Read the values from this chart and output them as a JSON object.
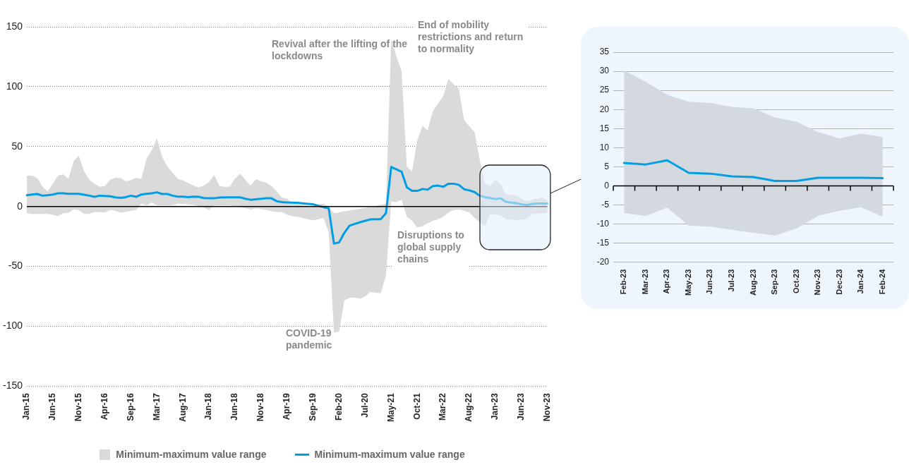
{
  "chart_data": [
    {
      "type": "line",
      "categories": [
        "Jan-15",
        null,
        null,
        null,
        null,
        "Jun-15",
        null,
        null,
        null,
        null,
        "Nov-15",
        null,
        null,
        null,
        null,
        "Apr-16",
        null,
        null,
        null,
        null,
        "Sep-16",
        null,
        null,
        null,
        null,
        "Mar-17",
        null,
        null,
        null,
        null,
        "Aug-17",
        null,
        null,
        null,
        null,
        "Jan-18",
        null,
        null,
        null,
        null,
        "Jun-18",
        null,
        null,
        null,
        null,
        "Nov-18",
        null,
        null,
        null,
        null,
        "Apr-19",
        null,
        null,
        null,
        null,
        "Sep-19",
        null,
        null,
        null,
        null,
        "Feb-20",
        null,
        null,
        null,
        null,
        "Jul-20",
        null,
        null,
        null,
        null,
        "May-21",
        null,
        null,
        null,
        null,
        "Oct-21",
        null,
        null,
        null,
        null,
        "Mar-22",
        null,
        null,
        null,
        null,
        "Aug-22",
        null,
        null,
        null,
        null,
        "Jan-23",
        null,
        null,
        null,
        null,
        "Jun-23",
        null,
        null,
        null,
        null,
        "Nov-23"
      ],
      "series": [
        {
          "type": "line",
          "name": "Minimum-maximum value range",
          "color": "#009fe3",
          "lower": [
            -5.6,
            -6.2,
            -6.2,
            -6.2,
            -6.2,
            -7,
            -8.2,
            -5.6,
            -5.2,
            -2.6,
            -3,
            -6.2,
            -6.2,
            -4.6,
            -4.8,
            -5,
            -3,
            -3.6,
            -5.2,
            -4.4,
            -3.6,
            -3,
            2.4,
            1,
            3.4,
            1,
            1,
            1,
            1,
            2.4,
            2,
            1.8,
            1.2,
            0.4,
            -1,
            -3,
            1,
            1,
            1,
            1,
            0,
            -0.6,
            -1.6,
            -2.6,
            -1.6,
            -2.2,
            -3,
            -4,
            -4.6,
            -4.6,
            -7,
            -8.2,
            -8.6,
            -9.6,
            -10.6,
            -11.6,
            -10.6,
            -9.6,
            -21.6,
            -105.4,
            -104.4,
            -78.4,
            -76.4,
            -76,
            -77,
            -75,
            -71.4,
            -72,
            -72.4,
            -57.4,
            4,
            3.6,
            5.6,
            -8.6,
            -12,
            -17.6,
            -16.6,
            -14,
            -12,
            -10.6,
            -8.6,
            -5,
            -3,
            -2.6,
            -3.6,
            -5,
            -9.6,
            -13,
            -16.6,
            -6.6,
            -6.6,
            -7.6,
            -10.6,
            -11,
            -11.6,
            -11,
            -10.6,
            -6.6,
            -6,
            -5.8,
            -5.6
          ],
          "upper": [
            25.7,
            25.7,
            23.7,
            16.4,
            12.4,
            19,
            25.7,
            26.7,
            23,
            38,
            42.3,
            29.4,
            22.4,
            19,
            16.4,
            17,
            22.4,
            24,
            23.7,
            21,
            22,
            24,
            23,
            40,
            47,
            56.9,
            41.3,
            33.4,
            28,
            23,
            21.8,
            19.6,
            17.4,
            15.8,
            17.4,
            20.4,
            26.3,
            17,
            16.4,
            16.4,
            23.4,
            27.4,
            22,
            17.4,
            22.8,
            21,
            19.8,
            17,
            12.4,
            7.4,
            6.4,
            2.4,
            1.8,
            1.2,
            0.8,
            0.4,
            1.4,
            2.4,
            -1,
            -5.6,
            -5,
            -4,
            -3.4,
            -2.6,
            -2,
            -1.4,
            0,
            0.6,
            1.4,
            2,
            140,
            125,
            113,
            33.3,
            29.3,
            55,
            67.2,
            63.6,
            79.6,
            86,
            92.2,
            106.6,
            102,
            98.2,
            72.2,
            67,
            62.2,
            39.1,
            19.2,
            17.2,
            22.2,
            19,
            10.4,
            9.8,
            9.2,
            6.6,
            4.2,
            5.6,
            6.6,
            7.6,
            4.8
          ],
          "values": [
            9.4,
            10,
            10.4,
            9,
            9.4,
            10,
            11,
            11,
            10.6,
            10.6,
            10.6,
            9.8,
            9,
            8,
            9,
            8.8,
            8.5,
            7.6,
            7.2,
            7.8,
            9,
            8,
            10,
            10.6,
            11,
            11.8,
            10.4,
            10.4,
            9,
            8.2,
            8.2,
            7.8,
            8.2,
            8,
            7,
            6.8,
            6.8,
            7.4,
            7.6,
            7.6,
            7.6,
            7.6,
            6.4,
            5.6,
            6,
            6.4,
            6.8,
            6.8,
            4.4,
            3.6,
            3.4,
            3.2,
            3,
            2.6,
            2.2,
            1.8,
            0.6,
            -0.6,
            -1.6,
            -31,
            -30,
            -22,
            -16,
            -14.6,
            -13.2,
            -12,
            -10.8,
            -10.6,
            -10.6,
            -5.5,
            33,
            31,
            29,
            16,
            13,
            13,
            14.6,
            14,
            17,
            17.4,
            16.4,
            19,
            19,
            18,
            14.4,
            13.4,
            12,
            9,
            7.8,
            7,
            6.2,
            6.8,
            4,
            3.2,
            2.8,
            1.8,
            1.2,
            2,
            2.4,
            2.4,
            2.4
          ]
        }
      ],
      "ylim": [
        -150,
        150
      ],
      "yticks": [
        -150,
        -100,
        -50,
        0,
        50,
        100,
        150
      ],
      "grid": "y",
      "legend": "bottom",
      "ref_lines": [
        {
          "axis": "y",
          "value": 0,
          "color": "#000000"
        }
      ],
      "annotations": [
        "Revival after the lifting of the lockdowns",
        "End of mobility restrictions and return to normality",
        "Disruptions to global supply chains",
        "COVID-19 pandemic"
      ]
    },
    {
      "type": "line",
      "categories": [
        "Feb-23",
        "Mar-23",
        "Apr-23",
        "May-23",
        "Jun-23",
        "Jul-23",
        "Aug-23",
        "Sep-23",
        "Oct-23",
        "Nov-23",
        "Dec-23",
        "Jan-24",
        "Feb-24"
      ],
      "series": [
        {
          "type": "line",
          "color": "#009fe3",
          "lower": [
            -7.1,
            -7.9,
            -5.7,
            -10.4,
            -10.7,
            -11.5,
            -12.3,
            -13,
            -11.2,
            -7.8,
            -6.5,
            -5.6,
            -8.1
          ],
          "upper": [
            30.2,
            27.3,
            23.8,
            22,
            21.7,
            20.7,
            20.3,
            17.9,
            16.8,
            14.1,
            12.4,
            13.7,
            12.8
          ],
          "values": [
            6,
            5.6,
            6.7,
            3.4,
            3.2,
            2.5,
            2.3,
            1.3,
            1.3,
            2.1,
            2.1,
            2.1,
            2
          ]
        }
      ],
      "ylim": [
        -20,
        35
      ],
      "yticks": [
        -20,
        -15,
        -10,
        -5,
        0,
        5,
        10,
        15,
        20,
        25,
        30,
        35
      ],
      "grid": "y",
      "ref_lines": [
        {
          "axis": "y",
          "value": 0,
          "color": "#000000"
        }
      ]
    }
  ]
}
